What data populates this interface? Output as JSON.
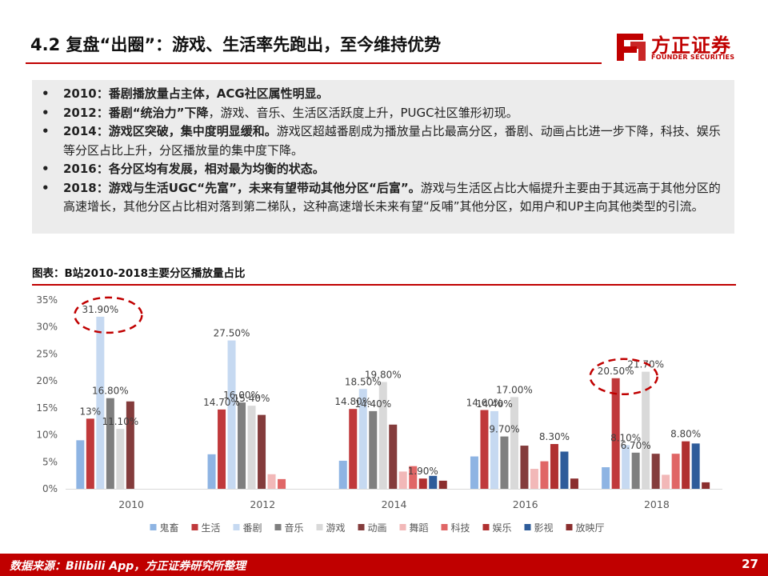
{
  "title": "4.2 复盘“出圈”：游戏、生活率先跑出，至今维持优势",
  "logo": {
    "cn": "方正证券",
    "en": "FOUNDER SECURITIES"
  },
  "summary": [
    {
      "strong": "2010：番剧播放量占主体，ACG社区属性明显。",
      "normal": ""
    },
    {
      "strong": "2012：番剧“统治力”下降",
      "normal": "，游戏、音乐、生活区活跃度上升，PUGC社区雏形初现。"
    },
    {
      "strong": "2014：游戏区突破，集中度明显缓和。",
      "normal": "游戏区超越番剧成为播放量占比最高分区，番剧、动画占比进一步下降，科技、娱乐等分区占比上升，分区播放量的集中度下降。"
    },
    {
      "strong": "2016：各分区均有发展，相对最为均衡的状态。",
      "normal": ""
    },
    {
      "strong": "2018：游戏与生活UGC“先富”，未来有望带动其他分区“后富”。",
      "normal": "游戏与生活区占比大幅提升主要由于其远高于其他分区的高速增长，其他分区占比相对落到第二梯队，这种高速增长未来有望“反哺”其他分区，如用户和UP主向其他类型的引流。"
    }
  ],
  "chart_title": "图表：B站2010-2018主要分区播放量占比",
  "chart_data": {
    "type": "bar",
    "categories": [
      "2010",
      "2012",
      "2014",
      "2016",
      "2018"
    ],
    "ylim": [
      0,
      35
    ],
    "yticks": [
      "0%",
      "5%",
      "10%",
      "15%",
      "20%",
      "25%",
      "30%",
      "35%"
    ],
    "legend_position": "bottom",
    "grid": false,
    "series": [
      {
        "name": "鬼畜",
        "color": "#8eb4e3",
        "values": [
          9.0,
          6.4,
          5.2,
          6.0,
          4.0
        ]
      },
      {
        "name": "生活",
        "color": "#c0393b",
        "values": [
          13.0,
          14.7,
          14.8,
          14.6,
          20.5
        ]
      },
      {
        "name": "番剧",
        "color": "#c6d9f1",
        "values": [
          31.9,
          27.5,
          18.5,
          14.4,
          8.1
        ]
      },
      {
        "name": "音乐",
        "color": "#7f7f7f",
        "values": [
          16.8,
          16.0,
          14.4,
          9.7,
          6.7
        ]
      },
      {
        "name": "游戏",
        "color": "#d9d9d9",
        "values": [
          11.1,
          15.4,
          19.8,
          17.0,
          21.7
        ]
      },
      {
        "name": "动画",
        "color": "#843c3c",
        "values": [
          16.2,
          13.7,
          11.9,
          8.0,
          6.5
        ]
      },
      {
        "name": "舞蹈",
        "color": "#f2b8b8",
        "values": [
          null,
          2.7,
          3.2,
          3.7,
          2.6
        ]
      },
      {
        "name": "科技",
        "color": "#e06666",
        "values": [
          null,
          1.8,
          4.2,
          5.1,
          6.5
        ]
      },
      {
        "name": "娱乐",
        "color": "#b03030",
        "values": [
          null,
          null,
          1.9,
          8.3,
          8.8
        ]
      },
      {
        "name": "影视",
        "color": "#2e5c9a",
        "values": [
          null,
          null,
          2.4,
          6.9,
          8.4
        ]
      },
      {
        "name": "放映厅",
        "color": "#8b2e2e",
        "values": [
          null,
          null,
          1.5,
          1.9,
          1.2
        ]
      }
    ],
    "data_labels": [
      {
        "text": "31.90%",
        "cat": 0,
        "series": 2
      },
      {
        "text": "13%",
        "cat": 0,
        "series": 1
      },
      {
        "text": "16.80%",
        "cat": 0,
        "series": 3
      },
      {
        "text": "11.10%",
        "cat": 0,
        "series": 4
      },
      {
        "text": "27.50%",
        "cat": 1,
        "series": 2
      },
      {
        "text": "14.70%",
        "cat": 1,
        "series": 1
      },
      {
        "text": "16.00%",
        "cat": 1,
        "series": 3
      },
      {
        "text": "15.40%",
        "cat": 1,
        "series": 4
      },
      {
        "text": "14.80%",
        "cat": 2,
        "series": 1
      },
      {
        "text": "18.50%",
        "cat": 2,
        "series": 2
      },
      {
        "text": "14.40%",
        "cat": 2,
        "series": 3
      },
      {
        "text": "19.80%",
        "cat": 2,
        "series": 4
      },
      {
        "text": "1.90%",
        "cat": 2,
        "series": 8
      },
      {
        "text": "14.60%",
        "cat": 3,
        "series": 1
      },
      {
        "text": "14.40%",
        "cat": 3,
        "series": 2
      },
      {
        "text": "9.70%",
        "cat": 3,
        "series": 3
      },
      {
        "text": "17.00%",
        "cat": 3,
        "series": 4
      },
      {
        "text": "8.30%",
        "cat": 3,
        "series": 8
      },
      {
        "text": "20.50%",
        "cat": 4,
        "series": 1
      },
      {
        "text": "8.10%",
        "cat": 4,
        "series": 2
      },
      {
        "text": "6.70%",
        "cat": 4,
        "series": 3
      },
      {
        "text": "21.70%",
        "cat": 4,
        "series": 4
      },
      {
        "text": "8.80%",
        "cat": 4,
        "series": 8
      }
    ],
    "highlights": [
      {
        "cat": 0,
        "series": 2
      },
      {
        "cat": 4,
        "series": 1
      }
    ]
  },
  "footer": {
    "source": "数据来源：Bilibili App，方正证券研究所整理",
    "page": "27"
  }
}
